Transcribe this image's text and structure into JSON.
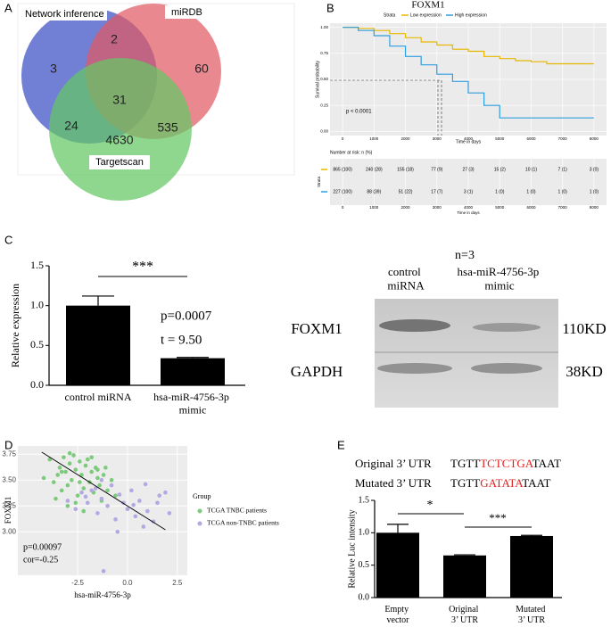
{
  "panel_labels": [
    "A",
    "B",
    "C",
    "D",
    "E"
  ],
  "venn": {
    "labels": [
      "Network inference",
      "miRDB",
      "Targetscan"
    ],
    "regions": [
      3,
      2,
      60,
      31,
      24,
      535,
      4630
    ]
  },
  "blot": {
    "n": "n=3",
    "lanes": [
      "control\nmiRNA",
      "hsa-miR-4756-3p\nmimic"
    ],
    "rows": [
      {
        "name": "FOXM1",
        "size": "110KD"
      },
      {
        "name": "GAPDH",
        "size": "38KD"
      }
    ]
  },
  "utr": [
    {
      "label": "Original 3’ UTR",
      "seq": [
        "TGTT",
        "TCTCTGA",
        "TAAT"
      ]
    },
    {
      "label": "Mutated 3’ UTR",
      "seq": [
        "TGTT",
        "GATATA",
        "TAAT"
      ]
    }
  ],
  "chart_data": [
    {
      "type": "line",
      "title": "FOXM1",
      "legend_title": "Strata",
      "xlabel": "Time in days",
      "ylabel": "Survival probability",
      "annotation": "p < 0.0001",
      "x": [
        0,
        500,
        1000,
        1500,
        2000,
        2500,
        3000,
        3500,
        4000,
        4500,
        5000,
        5500,
        6000,
        6500,
        7000,
        8000
      ],
      "series": [
        {
          "name": "Low expression",
          "color": "#e7b800",
          "values": [
            1,
            0.99,
            0.97,
            0.94,
            0.9,
            0.86,
            0.83,
            0.79,
            0.77,
            0.72,
            0.7,
            0.68,
            0.67,
            0.65,
            0.65,
            0.65
          ]
        },
        {
          "name": "High expression",
          "color": "#2e9fdf",
          "values": [
            1,
            0.97,
            0.92,
            0.82,
            0.72,
            0.64,
            0.55,
            0.48,
            0.37,
            0.25,
            0.13,
            0.13,
            0.13,
            0.13,
            0.13,
            0.13
          ]
        }
      ],
      "xlim": [
        -400,
        8400
      ],
      "xticks": [
        0,
        1000,
        2000,
        3000,
        4000,
        5000,
        6000,
        7000,
        8000
      ],
      "ylim": [
        -0.04,
        1.04
      ],
      "yticks": [
        {
          "value": 0,
          "label": "0.00"
        },
        {
          "value": 0.25,
          "label": "0.25"
        },
        {
          "value": 0.5,
          "label": "0.50"
        },
        {
          "value": 0.75,
          "label": "0.75"
        },
        {
          "value": 1,
          "label": "1.00"
        }
      ],
      "grid": true,
      "risk_table": {
        "title": "Number at risk: n (%)",
        "ylabel": "Strata",
        "rows": [
          [
            "865 (100)",
            "240 (28)",
            "155 (18)",
            "77 (9)",
            "27 (3)",
            "15 (2)",
            "10 (1)",
            "7 (1)",
            "3 (0)"
          ],
          [
            "227 (100)",
            "88 (39)",
            "51 (22)",
            "17 (7)",
            "3 (1)",
            "1 (0)",
            "1 (0)",
            "1 (0)",
            "1 (0)"
          ]
        ]
      }
    },
    {
      "type": "bar",
      "ylabel": "Relative expression",
      "categories": [
        "control miRNA",
        "hsa-miR-4756-3p\nmimic"
      ],
      "values": [
        1.0,
        0.34
      ],
      "errors": [
        0.12,
        0.01
      ],
      "color": "#000000",
      "ylim": [
        0,
        1.5
      ],
      "yticks": [
        {
          "value": 0,
          "label": "0.0"
        },
        {
          "value": 0.5,
          "label": "0.5"
        },
        {
          "value": 1,
          "label": "1.0"
        },
        {
          "value": 1.5,
          "label": "1.5"
        }
      ],
      "annotations": [
        "***",
        "p=0.0007",
        "t = 9.50"
      ]
    },
    {
      "type": "scatter",
      "xlabel": "hsa-miR-4756-3p",
      "ylabel": "FOXM1",
      "legend_title": "Group",
      "annotations": [
        "p=0.00097",
        "cor=-0.25"
      ],
      "series": [
        {
          "name": "TCGA TNBC patients",
          "color": "#7ccb7c",
          "x": [
            -4.2,
            -3.9,
            -3.7,
            -3.5,
            -3.4,
            -3.3,
            -3.2,
            -3.1,
            -3.0,
            -2.9,
            -2.8,
            -2.7,
            -2.6,
            -2.5,
            -2.4,
            -2.3,
            -2.2,
            -2.1,
            -2.0,
            -1.9,
            -1.8,
            -1.7,
            -1.6,
            -1.5,
            -1.4,
            -1.3,
            -1.2,
            -1.0,
            -0.8,
            -0.6,
            -3.6,
            -3.0,
            -2.6,
            -2.2,
            -1.8,
            -1.5,
            -2.9,
            -2.4,
            -3.3,
            -1.1
          ],
          "values": [
            3.52,
            3.7,
            3.48,
            3.55,
            3.62,
            3.4,
            3.72,
            3.58,
            3.45,
            3.66,
            3.5,
            3.74,
            3.6,
            3.35,
            3.68,
            3.55,
            3.42,
            3.64,
            3.7,
            3.48,
            3.58,
            3.38,
            3.62,
            3.52,
            3.45,
            3.3,
            3.55,
            3.4,
            3.5,
            3.35,
            3.32,
            3.25,
            3.28,
            3.2,
            3.72,
            3.6,
            3.76,
            3.48,
            3.58,
            3.62
          ]
        },
        {
          "name": "TCGA non-TNBC patients",
          "color": "#b4a8e2",
          "x": [
            -3.0,
            -2.6,
            -2.3,
            -2.0,
            -1.8,
            -1.5,
            -1.3,
            -1.0,
            -0.8,
            -0.6,
            -0.4,
            -0.2,
            0.0,
            0.2,
            0.4,
            0.6,
            0.8,
            1.0,
            1.3,
            1.6,
            1.9,
            2.1,
            -1.2,
            -0.5,
            0.3,
            -2.1,
            -1.6,
            0.9,
            1.5,
            -1.3
          ],
          "values": [
            3.3,
            3.22,
            3.38,
            3.28,
            3.4,
            3.18,
            3.32,
            3.25,
            3.45,
            3.12,
            3.36,
            3.28,
            3.22,
            3.4,
            3.15,
            3.3,
            3.05,
            3.2,
            3.1,
            3.35,
            3.38,
            3.18,
            2.62,
            3.0,
            3.26,
            3.34,
            3.42,
            3.46,
            3.28,
            3.5
          ]
        }
      ],
      "trend_line": {
        "x": [
          -4.3,
          1.9
        ],
        "y": [
          3.77,
          3.02
        ]
      },
      "xlim": [
        -5.5,
        3.0
      ],
      "xticks": [
        {
          "value": -2.5,
          "label": "-2.5"
        },
        {
          "value": 0,
          "label": "0.0"
        },
        {
          "value": 2.5,
          "label": "2.5"
        }
      ],
      "ylim": [
        2.58,
        3.83
      ],
      "yticks": [
        {
          "value": 3,
          "label": "3.00"
        },
        {
          "value": 3.25,
          "label": "3.25"
        },
        {
          "value": 3.5,
          "label": "3.50"
        },
        {
          "value": 3.75,
          "label": "3.75"
        }
      ],
      "grid": true
    },
    {
      "type": "bar",
      "ylabel": "Relative Luc intensity",
      "categories": [
        "Empty\nvector",
        "Original\n3’ UTR",
        "Mutated\n3’ UTR"
      ],
      "values": [
        1.0,
        0.65,
        0.95
      ],
      "errors": [
        0.13,
        0.01,
        0.01
      ],
      "color": "#000000",
      "ylim": [
        0,
        1.5
      ],
      "yticks": [
        {
          "value": 0,
          "label": "0.0"
        },
        {
          "value": 0.5,
          "label": "0.5"
        },
        {
          "value": 1,
          "label": "1.0"
        },
        {
          "value": 1.5,
          "label": "1.5"
        }
      ],
      "annotations": [
        "*",
        "***"
      ]
    }
  ]
}
